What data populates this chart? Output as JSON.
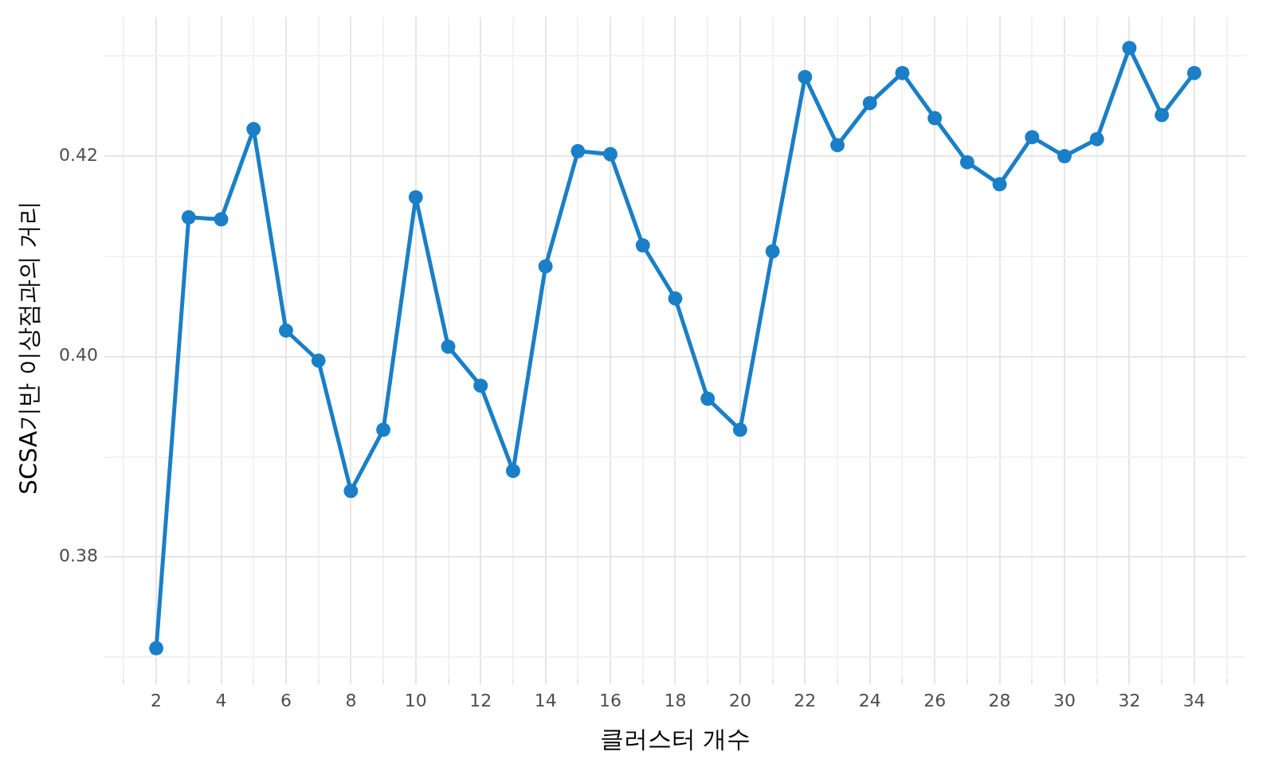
{
  "chart_data": {
    "type": "line",
    "xlabel": "클러스터 개수",
    "ylabel": "SCSA기반 이상점과의 거리",
    "x": [
      2,
      3,
      4,
      5,
      6,
      7,
      8,
      9,
      10,
      11,
      12,
      13,
      14,
      15,
      16,
      17,
      18,
      19,
      20,
      21,
      22,
      23,
      24,
      25,
      26,
      27,
      28,
      29,
      30,
      31,
      32,
      33,
      34
    ],
    "series": [
      {
        "color": "#1a7fc6",
        "values": [
          0.3709,
          0.4139,
          0.4137,
          0.4227,
          0.4026,
          0.3996,
          0.3866,
          0.3927,
          0.4159,
          0.401,
          0.3971,
          0.3886,
          0.409,
          0.4205,
          0.4202,
          0.4111,
          0.4058,
          0.3958,
          0.3927,
          0.4105,
          0.4279,
          0.4211,
          0.4253,
          0.4283,
          0.4238,
          0.4194,
          0.4172,
          0.4219,
          0.42,
          0.4217,
          0.4308,
          0.4241,
          0.4283
        ]
      }
    ],
    "xlim": [
      0.4,
      35.6
    ],
    "xticks": [
      {
        "value": 1,
        "label": null
      },
      2,
      {
        "value": 3,
        "label": null
      },
      4,
      {
        "value": 5,
        "label": null
      },
      6,
      {
        "value": 7,
        "label": null
      },
      8,
      {
        "value": 9,
        "label": null
      },
      10,
      {
        "value": 11,
        "label": null
      },
      12,
      {
        "value": 13,
        "label": null
      },
      14,
      {
        "value": 15,
        "label": null
      },
      16,
      {
        "value": 17,
        "label": null
      },
      18,
      {
        "value": 19,
        "label": null
      },
      20,
      {
        "value": 21,
        "label": null
      },
      22,
      {
        "value": 23,
        "label": null
      },
      24,
      {
        "value": 25,
        "label": null
      },
      26,
      {
        "value": 27,
        "label": null
      },
      28,
      {
        "value": 29,
        "label": null
      },
      30,
      {
        "value": 31,
        "label": null
      },
      32,
      {
        "value": 33,
        "label": null
      },
      34,
      {
        "value": 35,
        "label": null
      }
    ],
    "ylim": [
      0.3679,
      0.4339
    ],
    "yticks": [
      {
        "value": 0.37,
        "label": null
      },
      {
        "value": 0.38,
        "label": "0.38"
      },
      {
        "value": 0.39,
        "label": null
      },
      {
        "value": 0.4,
        "label": "0.40"
      },
      {
        "value": 0.41,
        "label": null
      },
      {
        "value": 0.42,
        "label": "0.42"
      },
      {
        "value": 0.43,
        "label": null
      }
    ],
    "grid": true,
    "legend": false,
    "marker": "circle",
    "line_style": "solid"
  }
}
